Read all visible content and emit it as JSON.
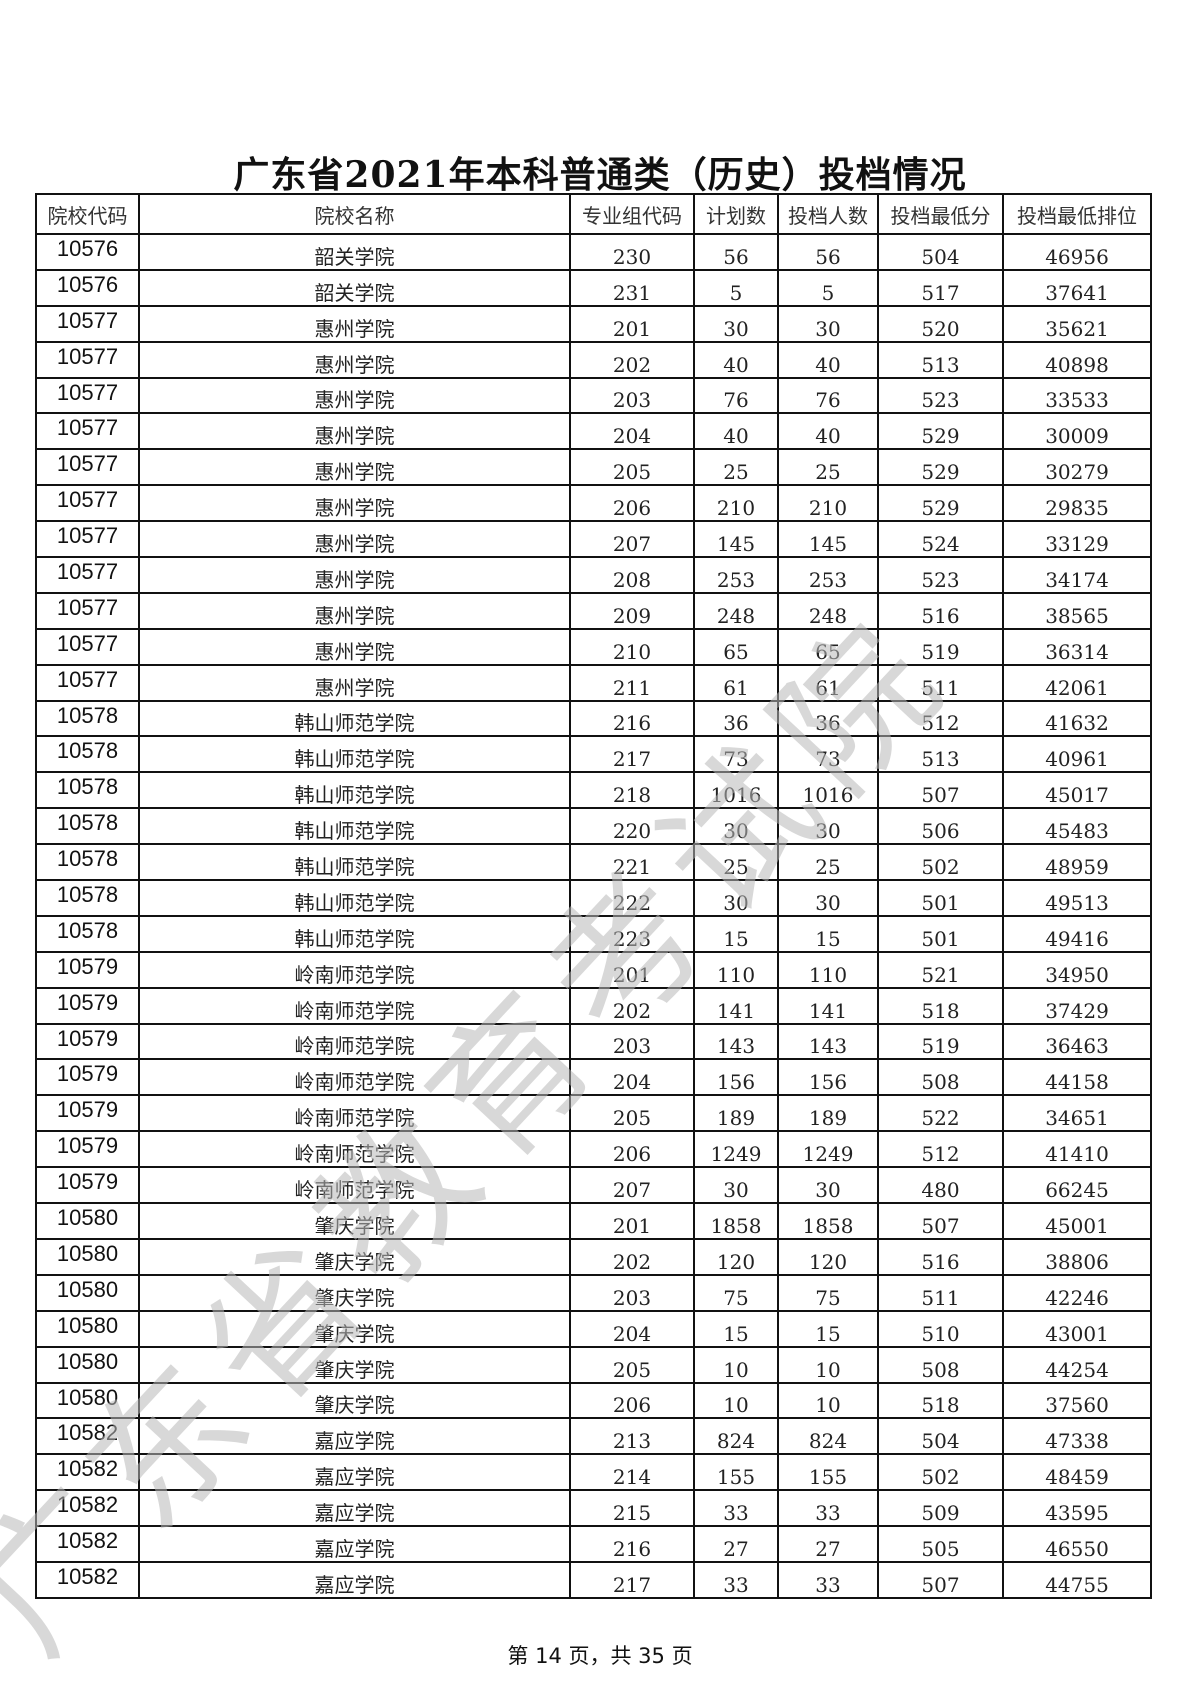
{
  "title": "广东省2021年本科普通类（历史）投档情况",
  "watermark": "广东省教育考试院",
  "columns": [
    "院校代码",
    "院校名称",
    "专业组代码",
    "计划数",
    "投档人数",
    "投档最低分",
    "投档最低排位"
  ],
  "rows": [
    [
      "10576",
      "韶关学院",
      "230",
      "56",
      "56",
      "504",
      "46956"
    ],
    [
      "10576",
      "韶关学院",
      "231",
      "5",
      "5",
      "517",
      "37641"
    ],
    [
      "10577",
      "惠州学院",
      "201",
      "30",
      "30",
      "520",
      "35621"
    ],
    [
      "10577",
      "惠州学院",
      "202",
      "40",
      "40",
      "513",
      "40898"
    ],
    [
      "10577",
      "惠州学院",
      "203",
      "76",
      "76",
      "523",
      "33533"
    ],
    [
      "10577",
      "惠州学院",
      "204",
      "40",
      "40",
      "529",
      "30009"
    ],
    [
      "10577",
      "惠州学院",
      "205",
      "25",
      "25",
      "529",
      "30279"
    ],
    [
      "10577",
      "惠州学院",
      "206",
      "210",
      "210",
      "529",
      "29835"
    ],
    [
      "10577",
      "惠州学院",
      "207",
      "145",
      "145",
      "524",
      "33129"
    ],
    [
      "10577",
      "惠州学院",
      "208",
      "253",
      "253",
      "523",
      "34174"
    ],
    [
      "10577",
      "惠州学院",
      "209",
      "248",
      "248",
      "516",
      "38565"
    ],
    [
      "10577",
      "惠州学院",
      "210",
      "65",
      "65",
      "519",
      "36314"
    ],
    [
      "10577",
      "惠州学院",
      "211",
      "61",
      "61",
      "511",
      "42061"
    ],
    [
      "10578",
      "韩山师范学院",
      "216",
      "36",
      "36",
      "512",
      "41632"
    ],
    [
      "10578",
      "韩山师范学院",
      "217",
      "73",
      "73",
      "513",
      "40961"
    ],
    [
      "10578",
      "韩山师范学院",
      "218",
      "1016",
      "1016",
      "507",
      "45017"
    ],
    [
      "10578",
      "韩山师范学院",
      "220",
      "30",
      "30",
      "506",
      "45483"
    ],
    [
      "10578",
      "韩山师范学院",
      "221",
      "25",
      "25",
      "502",
      "48959"
    ],
    [
      "10578",
      "韩山师范学院",
      "222",
      "30",
      "30",
      "501",
      "49513"
    ],
    [
      "10578",
      "韩山师范学院",
      "223",
      "15",
      "15",
      "501",
      "49416"
    ],
    [
      "10579",
      "岭南师范学院",
      "201",
      "110",
      "110",
      "521",
      "34950"
    ],
    [
      "10579",
      "岭南师范学院",
      "202",
      "141",
      "141",
      "518",
      "37429"
    ],
    [
      "10579",
      "岭南师范学院",
      "203",
      "143",
      "143",
      "519",
      "36463"
    ],
    [
      "10579",
      "岭南师范学院",
      "204",
      "156",
      "156",
      "508",
      "44158"
    ],
    [
      "10579",
      "岭南师范学院",
      "205",
      "189",
      "189",
      "522",
      "34651"
    ],
    [
      "10579",
      "岭南师范学院",
      "206",
      "1249",
      "1249",
      "512",
      "41410"
    ],
    [
      "10579",
      "岭南师范学院",
      "207",
      "30",
      "30",
      "480",
      "66245"
    ],
    [
      "10580",
      "肇庆学院",
      "201",
      "1858",
      "1858",
      "507",
      "45001"
    ],
    [
      "10580",
      "肇庆学院",
      "202",
      "120",
      "120",
      "516",
      "38806"
    ],
    [
      "10580",
      "肇庆学院",
      "203",
      "75",
      "75",
      "511",
      "42246"
    ],
    [
      "10580",
      "肇庆学院",
      "204",
      "15",
      "15",
      "510",
      "43001"
    ],
    [
      "10580",
      "肇庆学院",
      "205",
      "10",
      "10",
      "508",
      "44254"
    ],
    [
      "10580",
      "肇庆学院",
      "206",
      "10",
      "10",
      "518",
      "37560"
    ],
    [
      "10582",
      "嘉应学院",
      "213",
      "824",
      "824",
      "504",
      "47338"
    ],
    [
      "10582",
      "嘉应学院",
      "214",
      "155",
      "155",
      "502",
      "48459"
    ],
    [
      "10582",
      "嘉应学院",
      "215",
      "33",
      "33",
      "509",
      "43595"
    ],
    [
      "10582",
      "嘉应学院",
      "216",
      "27",
      "27",
      "505",
      "46550"
    ],
    [
      "10582",
      "嘉应学院",
      "217",
      "33",
      "33",
      "507",
      "44755"
    ]
  ],
  "footer": "第 14 页，共 35 页"
}
